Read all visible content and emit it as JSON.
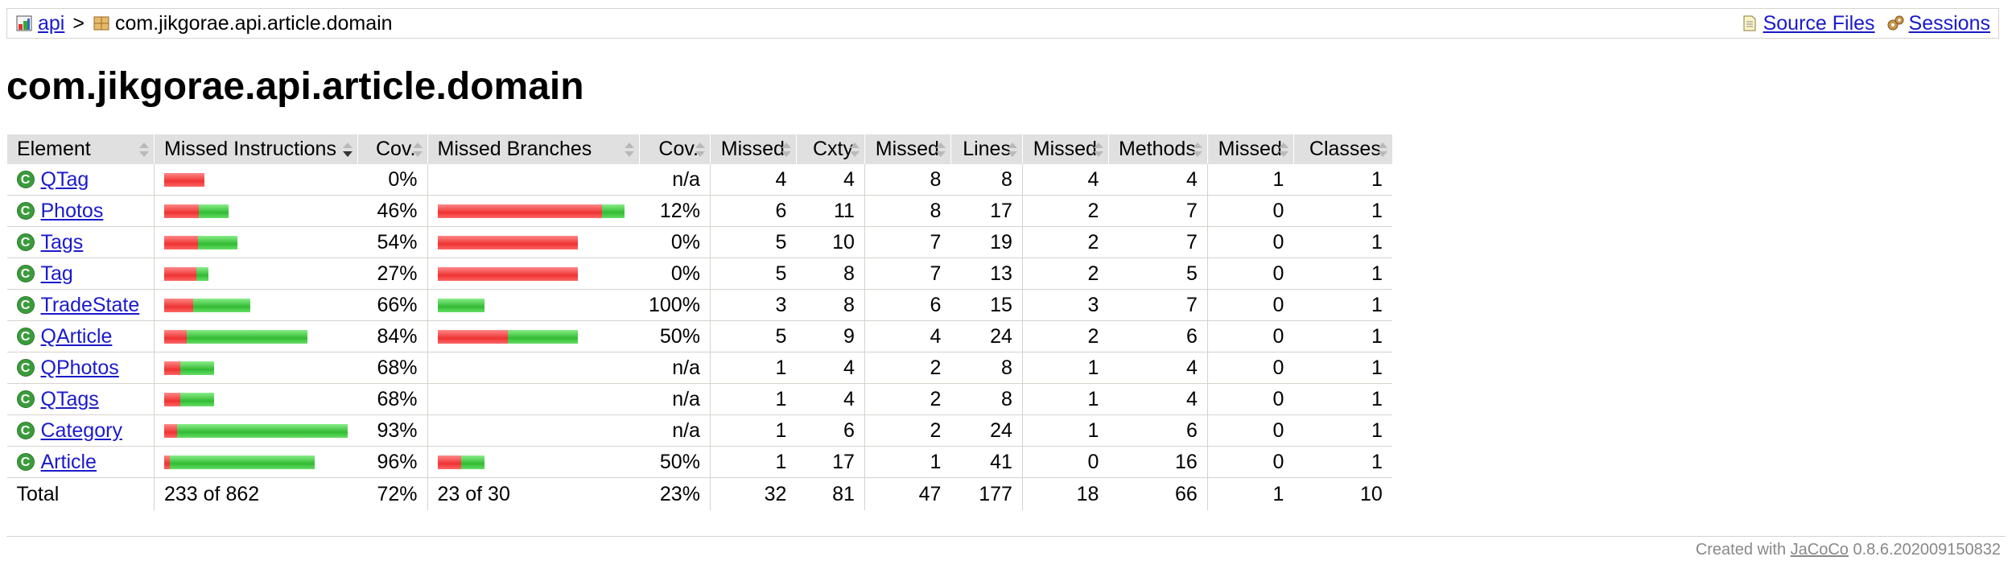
{
  "breadcrumb": {
    "root_link": "api",
    "separator": ">",
    "current": "com.jikgorae.api.article.domain",
    "source_files": "Source Files",
    "sessions": "Sessions"
  },
  "page_title": "com.jikgorae.api.article.domain",
  "table": {
    "headers": {
      "element": "Element",
      "missed_instructions": "Missed Instructions",
      "instr_cov": "Cov.",
      "missed_branches": "Missed Branches",
      "branch_cov": "Cov.",
      "cxty_missed": "Missed",
      "cxty": "Cxty",
      "lines_missed": "Missed",
      "lines": "Lines",
      "methods_missed": "Missed",
      "methods": "Methods",
      "classes_missed": "Missed",
      "classes": "Classes"
    },
    "rows": [
      {
        "name": "QTag",
        "instr_missed_frac": 1.0,
        "instr_total_rel": 0.22,
        "instr_cov": "0%",
        "branch_missed_frac": null,
        "branch_total_rel": 0,
        "branch_cov": "n/a",
        "cxty_missed": "4",
        "cxty": "4",
        "lines_missed": "8",
        "lines": "8",
        "methods_missed": "4",
        "methods": "4",
        "classes_missed": "1",
        "classes": "1"
      },
      {
        "name": "Photos",
        "instr_missed_frac": 0.54,
        "instr_total_rel": 0.35,
        "instr_cov": "46%",
        "branch_missed_frac": 0.88,
        "branch_total_rel": 1.0,
        "branch_cov": "12%",
        "cxty_missed": "6",
        "cxty": "11",
        "lines_missed": "8",
        "lines": "17",
        "methods_missed": "2",
        "methods": "7",
        "classes_missed": "0",
        "classes": "1"
      },
      {
        "name": "Tags",
        "instr_missed_frac": 0.46,
        "instr_total_rel": 0.4,
        "instr_cov": "54%",
        "branch_missed_frac": 1.0,
        "branch_total_rel": 0.75,
        "branch_cov": "0%",
        "cxty_missed": "5",
        "cxty": "10",
        "lines_missed": "7",
        "lines": "19",
        "methods_missed": "2",
        "methods": "7",
        "classes_missed": "0",
        "classes": "1"
      },
      {
        "name": "Tag",
        "instr_missed_frac": 0.73,
        "instr_total_rel": 0.24,
        "instr_cov": "27%",
        "branch_missed_frac": 1.0,
        "branch_total_rel": 0.75,
        "branch_cov": "0%",
        "cxty_missed": "5",
        "cxty": "8",
        "lines_missed": "7",
        "lines": "13",
        "methods_missed": "2",
        "methods": "5",
        "classes_missed": "0",
        "classes": "1"
      },
      {
        "name": "TradeState",
        "instr_missed_frac": 0.34,
        "instr_total_rel": 0.47,
        "instr_cov": "66%",
        "branch_missed_frac": 0.0,
        "branch_total_rel": 0.25,
        "branch_cov": "100%",
        "cxty_missed": "3",
        "cxty": "8",
        "lines_missed": "6",
        "lines": "15",
        "methods_missed": "3",
        "methods": "7",
        "classes_missed": "0",
        "classes": "1"
      },
      {
        "name": "QArticle",
        "instr_missed_frac": 0.16,
        "instr_total_rel": 0.78,
        "instr_cov": "84%",
        "branch_missed_frac": 0.5,
        "branch_total_rel": 0.75,
        "branch_cov": "50%",
        "cxty_missed": "5",
        "cxty": "9",
        "lines_missed": "4",
        "lines": "24",
        "methods_missed": "2",
        "methods": "6",
        "classes_missed": "0",
        "classes": "1"
      },
      {
        "name": "QPhotos",
        "instr_missed_frac": 0.32,
        "instr_total_rel": 0.27,
        "instr_cov": "68%",
        "branch_missed_frac": null,
        "branch_total_rel": 0,
        "branch_cov": "n/a",
        "cxty_missed": "1",
        "cxty": "4",
        "lines_missed": "2",
        "lines": "8",
        "methods_missed": "1",
        "methods": "4",
        "classes_missed": "0",
        "classes": "1"
      },
      {
        "name": "QTags",
        "instr_missed_frac": 0.32,
        "instr_total_rel": 0.27,
        "instr_cov": "68%",
        "branch_missed_frac": null,
        "branch_total_rel": 0,
        "branch_cov": "n/a",
        "cxty_missed": "1",
        "cxty": "4",
        "lines_missed": "2",
        "lines": "8",
        "methods_missed": "1",
        "methods": "4",
        "classes_missed": "0",
        "classes": "1"
      },
      {
        "name": "Category",
        "instr_missed_frac": 0.07,
        "instr_total_rel": 1.0,
        "instr_cov": "93%",
        "branch_missed_frac": null,
        "branch_total_rel": 0,
        "branch_cov": "n/a",
        "cxty_missed": "1",
        "cxty": "6",
        "lines_missed": "2",
        "lines": "24",
        "methods_missed": "1",
        "methods": "6",
        "classes_missed": "0",
        "classes": "1"
      },
      {
        "name": "Article",
        "instr_missed_frac": 0.04,
        "instr_total_rel": 0.82,
        "instr_cov": "96%",
        "branch_missed_frac": 0.5,
        "branch_total_rel": 0.25,
        "branch_cov": "50%",
        "cxty_missed": "1",
        "cxty": "17",
        "lines_missed": "1",
        "lines": "41",
        "methods_missed": "0",
        "methods": "16",
        "classes_missed": "0",
        "classes": "1"
      }
    ],
    "total": {
      "label": "Total",
      "instr": "233 of 862",
      "instr_cov": "72%",
      "branch": "23 of 30",
      "branch_cov": "23%",
      "cxty_missed": "32",
      "cxty": "81",
      "lines_missed": "47",
      "lines": "177",
      "methods_missed": "18",
      "methods": "66",
      "classes_missed": "1",
      "classes": "10"
    }
  },
  "footer": {
    "prefix": "Created with",
    "tool_link": "JaCoCo",
    "version": "0.8.6.202009150832"
  },
  "colors": {
    "missed": "#e33333",
    "covered": "#33bb33",
    "link": "#1a1acc"
  }
}
